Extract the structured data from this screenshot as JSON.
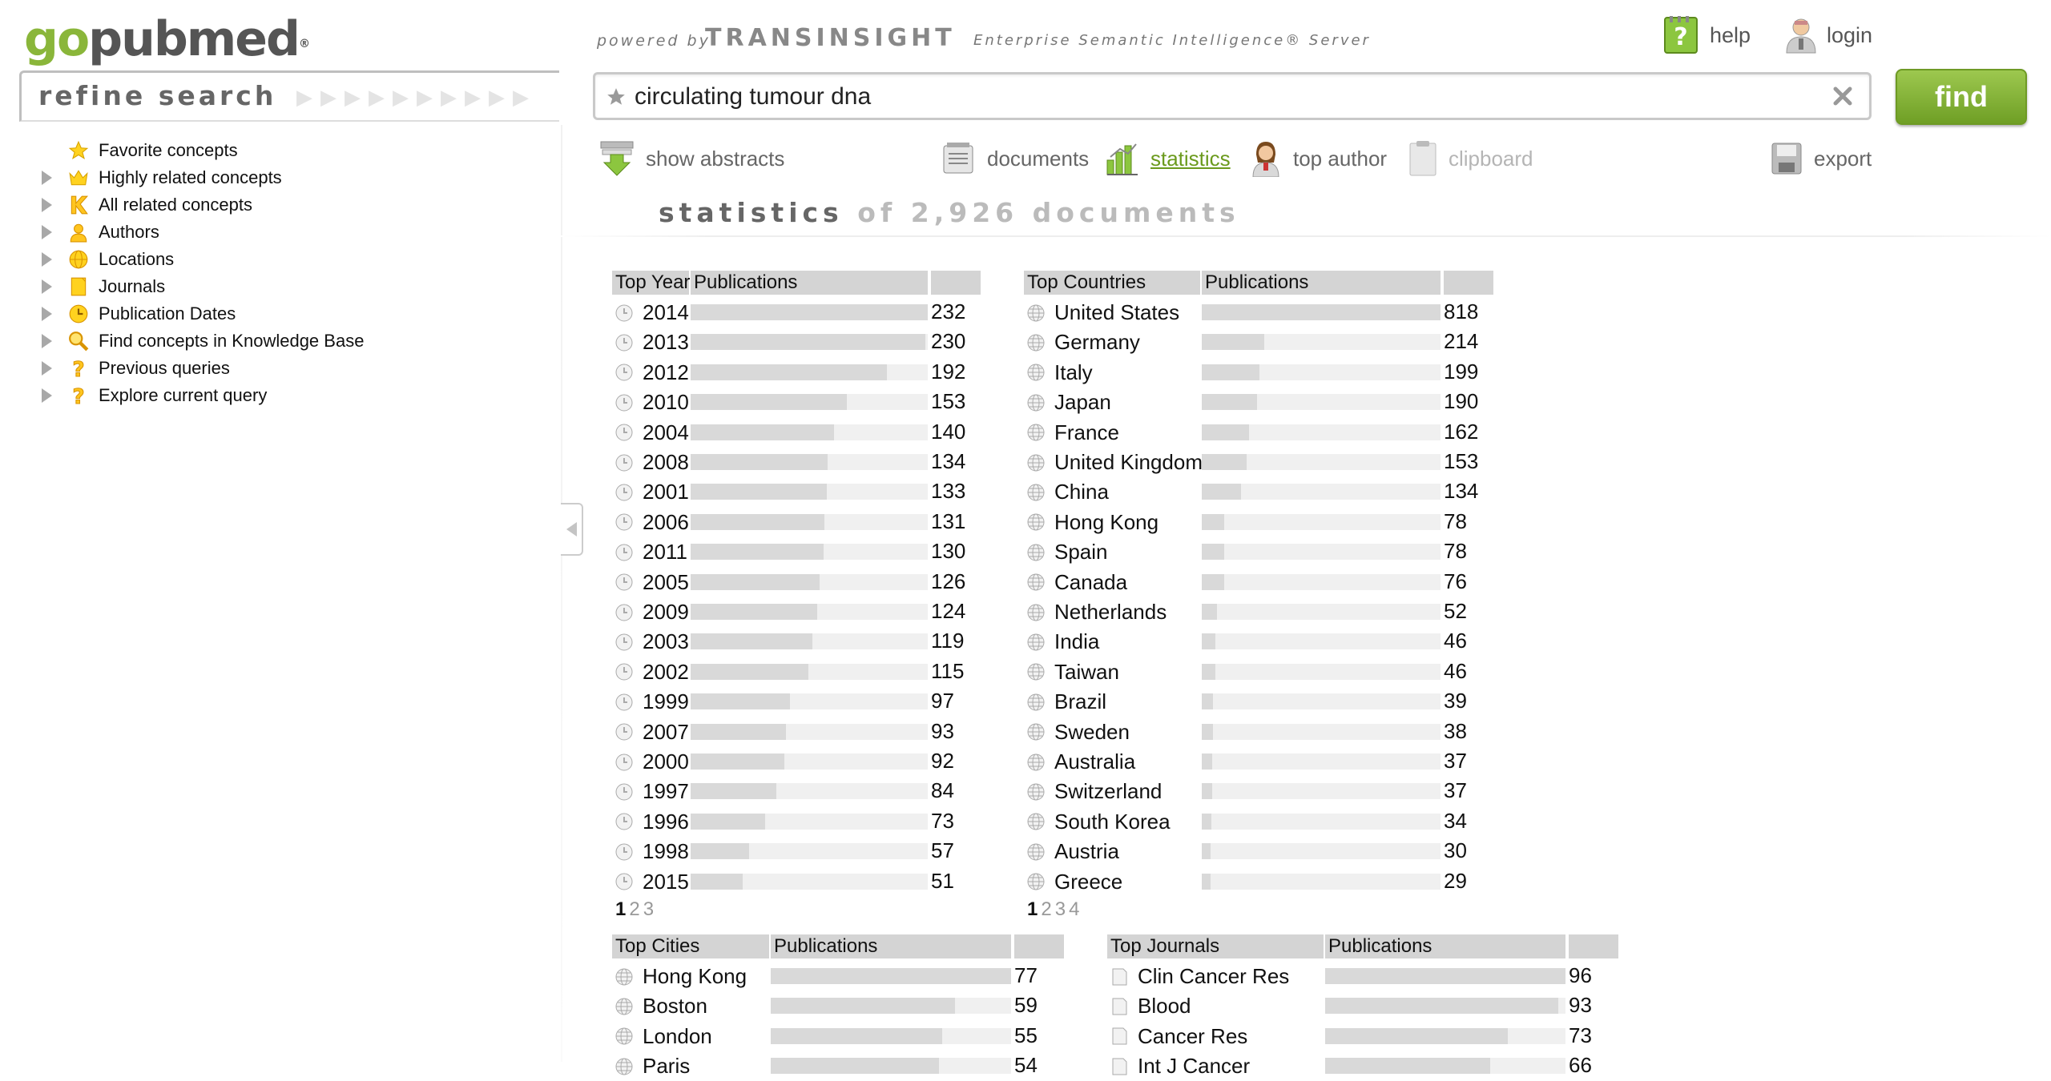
{
  "logo": {
    "go": "go",
    "pub": "pubmed",
    "mark": "®"
  },
  "header": {
    "powered_by": "powered by",
    "brand": "TRANSINSIGHT",
    "tagline": "Enterprise Semantic Intelligence® Server",
    "help_label": "help",
    "login_label": "login"
  },
  "search": {
    "query": "circulating tumour dna",
    "find_label": "find"
  },
  "refine": {
    "title": "refine search",
    "items": [
      {
        "label": "Favorite concepts",
        "icon": "star-icon",
        "expandable": false
      },
      {
        "label": "Highly related concepts",
        "icon": "crown-icon",
        "expandable": true
      },
      {
        "label": "All related concepts",
        "icon": "k-icon",
        "expandable": true
      },
      {
        "label": "Authors",
        "icon": "person-icon",
        "expandable": true
      },
      {
        "label": "Locations",
        "icon": "globe-icon",
        "expandable": true
      },
      {
        "label": "Journals",
        "icon": "journal-icon",
        "expandable": true
      },
      {
        "label": "Publication Dates",
        "icon": "clock-icon",
        "expandable": true
      },
      {
        "label": "Find concepts in Knowledge Base",
        "icon": "magnifier-icon",
        "expandable": true
      },
      {
        "label": "Previous queries",
        "icon": "question-icon",
        "expandable": true
      },
      {
        "label": "Explore current query",
        "icon": "question-icon",
        "expandable": true
      }
    ]
  },
  "toolbar": {
    "show_abstracts": "show abstracts",
    "documents": "documents",
    "statistics": "statistics",
    "top_author": "top author",
    "clipboard": "clipboard",
    "export": "export"
  },
  "stats": {
    "title": "statistics",
    "of": "of 2,926 documents"
  },
  "colors": {
    "accent_green": "#6b9a1d",
    "bar": "#d9d9d9",
    "header": "#d4d4d4"
  },
  "tables": {
    "years": {
      "col1": "Top Years",
      "col2": "Publications",
      "rows": [
        {
          "label": "2014",
          "count": 232
        },
        {
          "label": "2013",
          "count": 230
        },
        {
          "label": "2012",
          "count": 192
        },
        {
          "label": "2010",
          "count": 153
        },
        {
          "label": "2004",
          "count": 140
        },
        {
          "label": "2008",
          "count": 134
        },
        {
          "label": "2001",
          "count": 133
        },
        {
          "label": "2006",
          "count": 131
        },
        {
          "label": "2011",
          "count": 130
        },
        {
          "label": "2005",
          "count": 126
        },
        {
          "label": "2009",
          "count": 124
        },
        {
          "label": "2003",
          "count": 119
        },
        {
          "label": "2002",
          "count": 115
        },
        {
          "label": "1999",
          "count": 97
        },
        {
          "label": "2007",
          "count": 93
        },
        {
          "label": "2000",
          "count": 92
        },
        {
          "label": "1997",
          "count": 84
        },
        {
          "label": "1996",
          "count": 73
        },
        {
          "label": "1998",
          "count": 57
        },
        {
          "label": "2015",
          "count": 51
        }
      ],
      "max": 232,
      "pages": [
        "1",
        "2",
        "3"
      ]
    },
    "countries": {
      "col1": "Top Countries",
      "col2": "Publications",
      "rows": [
        {
          "label": "United States",
          "count": 818
        },
        {
          "label": "Germany",
          "count": 214
        },
        {
          "label": "Italy",
          "count": 199
        },
        {
          "label": "Japan",
          "count": 190
        },
        {
          "label": "France",
          "count": 162
        },
        {
          "label": "United Kingdom",
          "count": 153
        },
        {
          "label": "China",
          "count": 134
        },
        {
          "label": "Hong Kong",
          "count": 78
        },
        {
          "label": "Spain",
          "count": 78
        },
        {
          "label": "Canada",
          "count": 76
        },
        {
          "label": "Netherlands",
          "count": 52
        },
        {
          "label": "India",
          "count": 46
        },
        {
          "label": "Taiwan",
          "count": 46
        },
        {
          "label": "Brazil",
          "count": 39
        },
        {
          "label": "Sweden",
          "count": 38
        },
        {
          "label": "Australia",
          "count": 37
        },
        {
          "label": "Switzerland",
          "count": 37
        },
        {
          "label": "South Korea",
          "count": 34
        },
        {
          "label": "Austria",
          "count": 30
        },
        {
          "label": "Greece",
          "count": 29
        }
      ],
      "max": 818,
      "pages": [
        "1",
        "2",
        "3",
        "4"
      ]
    },
    "cities": {
      "col1": "Top Cities",
      "col2": "Publications",
      "rows": [
        {
          "label": "Hong Kong",
          "count": 77
        },
        {
          "label": "Boston",
          "count": 59
        },
        {
          "label": "London",
          "count": 55
        },
        {
          "label": "Paris",
          "count": 54
        }
      ],
      "max": 77
    },
    "journals": {
      "col1": "Top Journals",
      "col2": "Publications",
      "rows": [
        {
          "label": "Clin Cancer Res",
          "count": 96
        },
        {
          "label": "Blood",
          "count": 93
        },
        {
          "label": "Cancer Res",
          "count": 73
        },
        {
          "label": "Int J Cancer",
          "count": 66
        }
      ],
      "max": 96
    }
  }
}
